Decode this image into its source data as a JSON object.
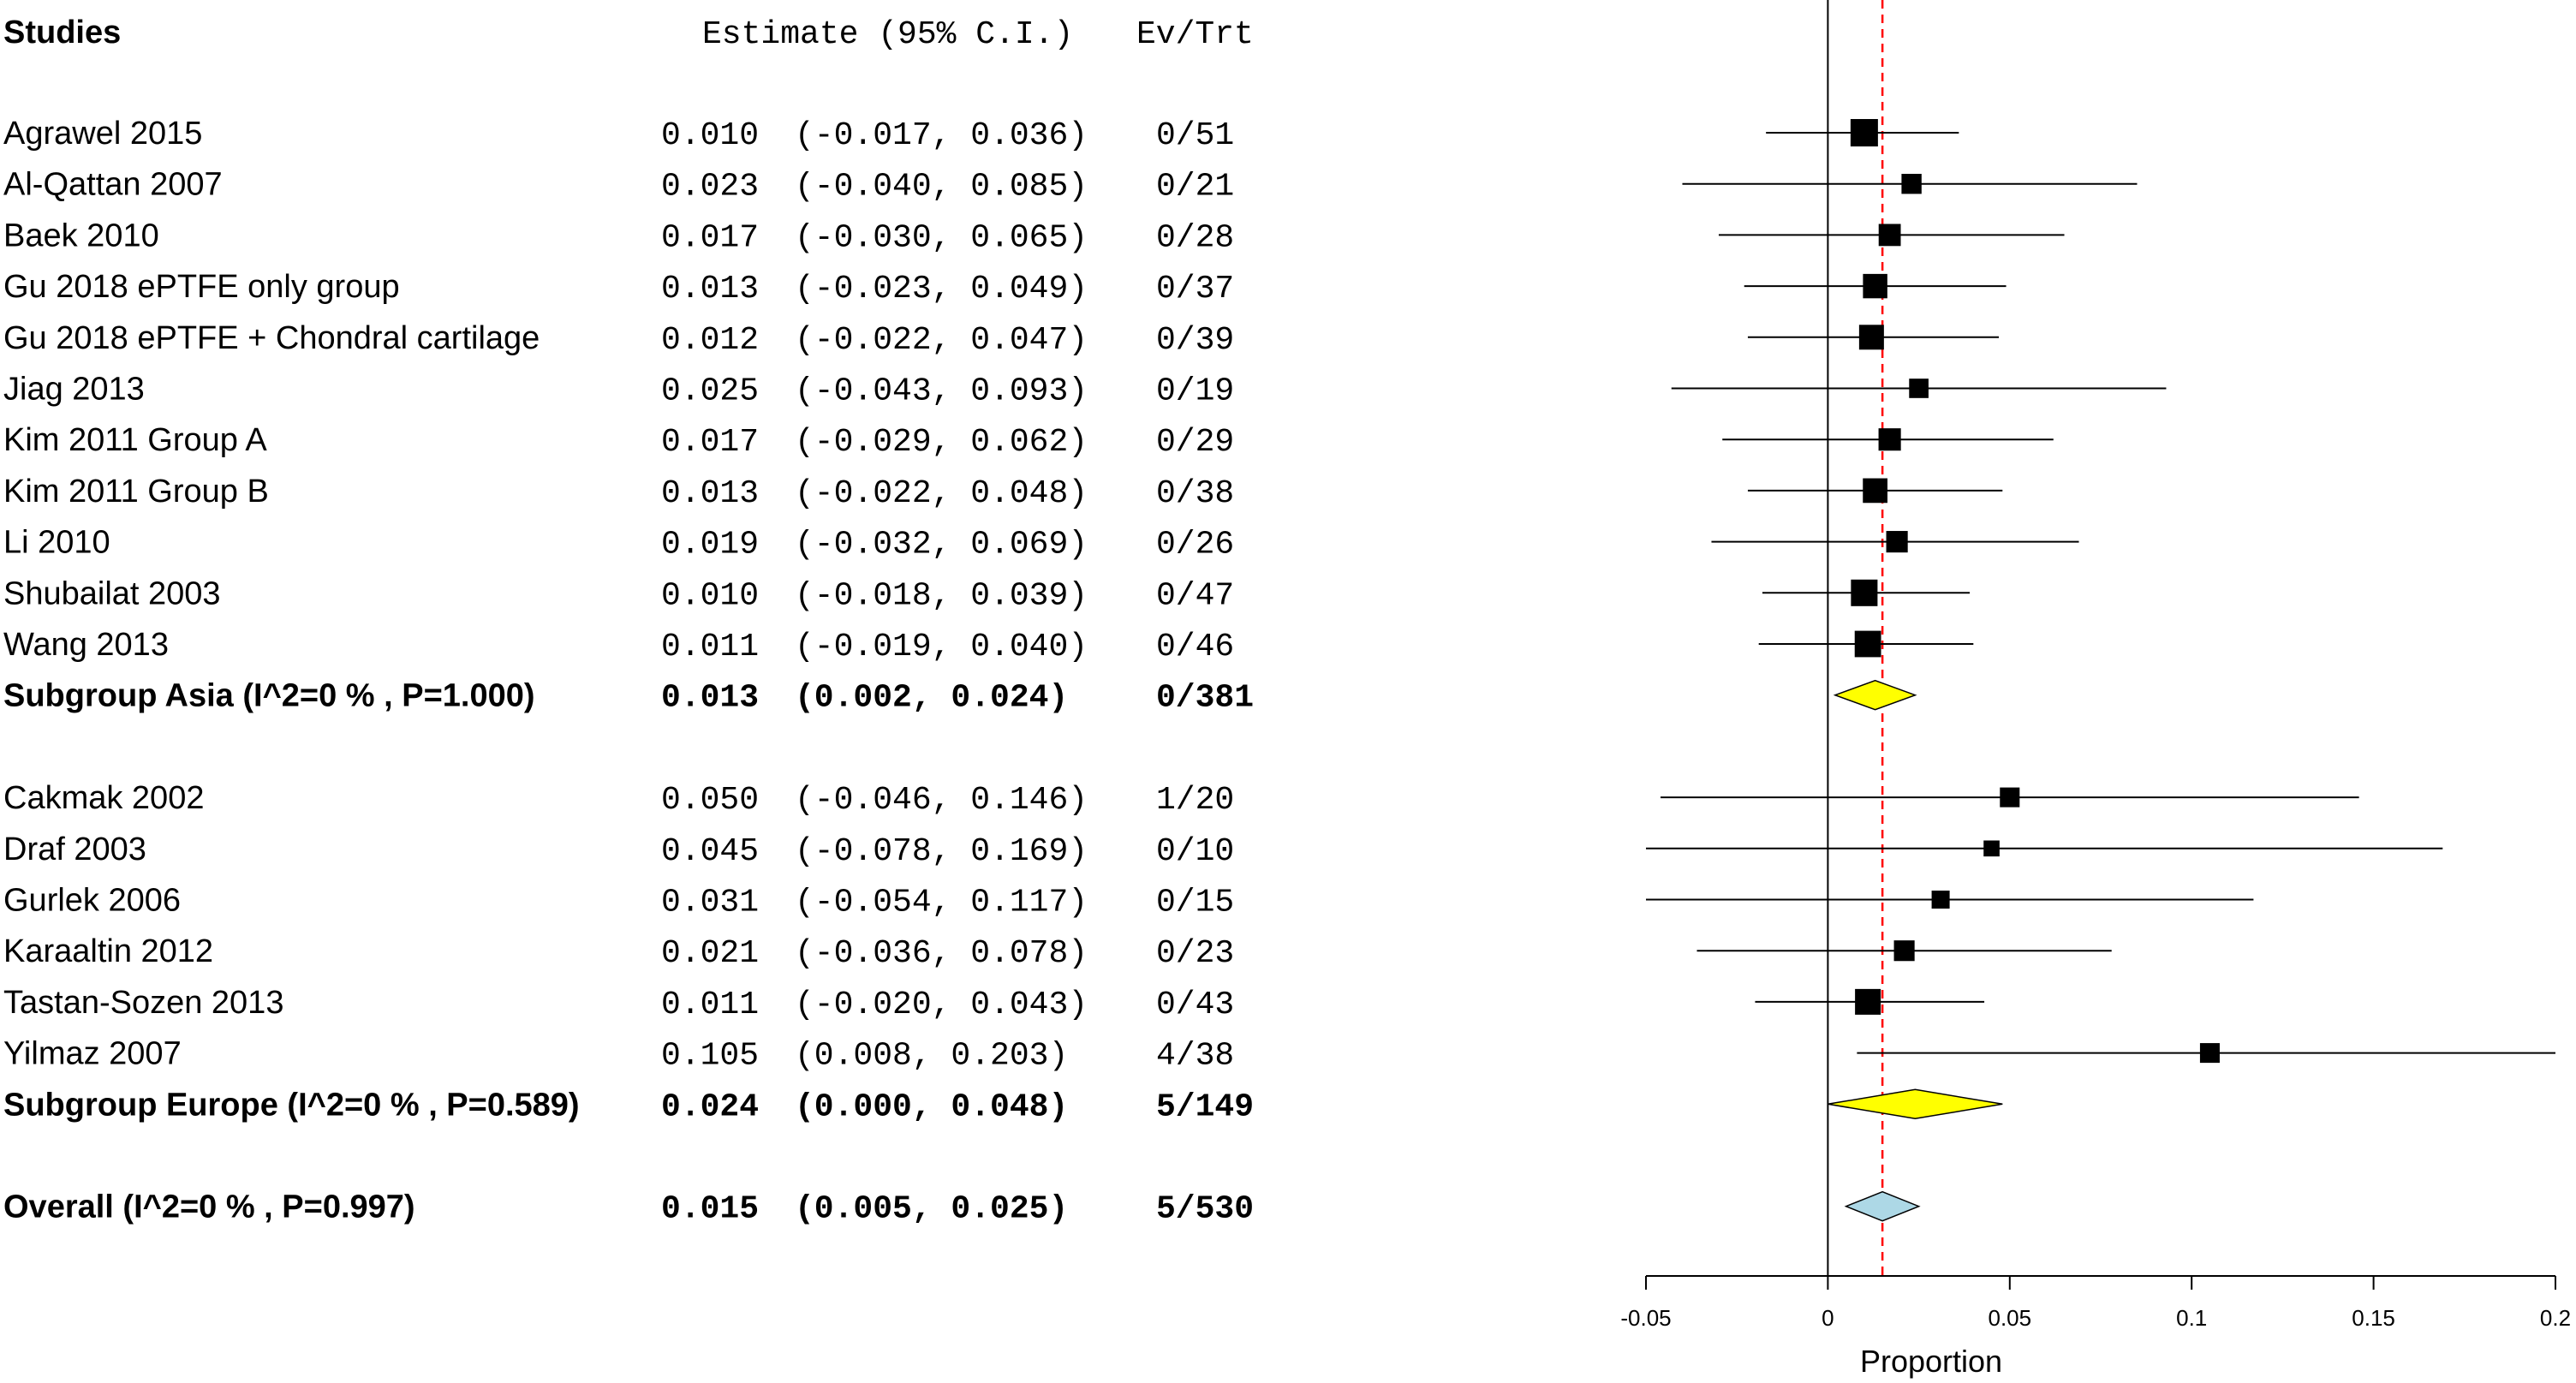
{
  "chart_data": {
    "type": "forest",
    "headers": {
      "studies": "Studies",
      "estimate": "Estimate (95% C.I.)",
      "evtrt": "Ev/Trt"
    },
    "xlabel": "Proportion",
    "xlim": [
      -0.05,
      0.2
    ],
    "ticks": [
      {
        "value": -0.05,
        "label": "-0.05"
      },
      {
        "value": 0,
        "label": "0"
      },
      {
        "value": 0.05,
        "label": "0.05"
      },
      {
        "value": 0.1,
        "label": "0.1"
      },
      {
        "value": 0.15,
        "label": "0.15"
      },
      {
        "value": 0.2,
        "label": "0.2"
      }
    ],
    "reference_line": 0,
    "overall_dashed_line": 0.015,
    "colors": {
      "subgroup_diamond": "#ffff00",
      "overall_diamond": "#add8e6",
      "dashed_line": "#ff0000"
    },
    "rows": [
      {
        "type": "study",
        "label": "Agrawel 2015",
        "est": 0.01,
        "lo": -0.017,
        "hi": 0.036,
        "est_text": "0.010",
        "ci_text": "(-0.017, 0.036)",
        "evtrt": "0/51",
        "weight": 51
      },
      {
        "type": "study",
        "label": "Al-Qattan 2007",
        "est": 0.023,
        "lo": -0.04,
        "hi": 0.085,
        "est_text": "0.023",
        "ci_text": "(-0.040, 0.085)",
        "evtrt": "0/21",
        "weight": 21
      },
      {
        "type": "study",
        "label": "Baek 2010",
        "est": 0.017,
        "lo": -0.03,
        "hi": 0.065,
        "est_text": "0.017",
        "ci_text": "(-0.030, 0.065)",
        "evtrt": "0/28",
        "weight": 28
      },
      {
        "type": "study",
        "label": "Gu 2018 ePTFE only group",
        "est": 0.013,
        "lo": -0.023,
        "hi": 0.049,
        "est_text": "0.013",
        "ci_text": "(-0.023, 0.049)",
        "evtrt": "0/37",
        "weight": 37
      },
      {
        "type": "study",
        "label": "Gu 2018 ePTFE + Chondral cartilage",
        "est": 0.012,
        "lo": -0.022,
        "hi": 0.047,
        "est_text": "0.012",
        "ci_text": "(-0.022, 0.047)",
        "evtrt": "0/39",
        "weight": 39
      },
      {
        "type": "study",
        "label": "Jiag 2013",
        "est": 0.025,
        "lo": -0.043,
        "hi": 0.093,
        "est_text": "0.025",
        "ci_text": "(-0.043, 0.093)",
        "evtrt": "0/19",
        "weight": 19
      },
      {
        "type": "study",
        "label": "Kim 2011 Group A",
        "est": 0.017,
        "lo": -0.029,
        "hi": 0.062,
        "est_text": "0.017",
        "ci_text": "(-0.029, 0.062)",
        "evtrt": "0/29",
        "weight": 29
      },
      {
        "type": "study",
        "label": "Kim 2011 Group B",
        "est": 0.013,
        "lo": -0.022,
        "hi": 0.048,
        "est_text": "0.013",
        "ci_text": "(-0.022, 0.048)",
        "evtrt": "0/38",
        "weight": 38
      },
      {
        "type": "study",
        "label": "Li 2010",
        "est": 0.019,
        "lo": -0.032,
        "hi": 0.069,
        "est_text": "0.019",
        "ci_text": "(-0.032, 0.069)",
        "evtrt": "0/26",
        "weight": 26
      },
      {
        "type": "study",
        "label": "Shubailat 2003",
        "est": 0.01,
        "lo": -0.018,
        "hi": 0.039,
        "est_text": "0.010",
        "ci_text": "(-0.018, 0.039)",
        "evtrt": "0/47",
        "weight": 47
      },
      {
        "type": "study",
        "label": "Wang 2013",
        "est": 0.011,
        "lo": -0.019,
        "hi": 0.04,
        "est_text": "0.011",
        "ci_text": "(-0.019, 0.040)",
        "evtrt": "0/46",
        "weight": 46
      },
      {
        "type": "subgroup",
        "label": "Subgroup Asia (I^2=0 % , P=1.000)",
        "est": 0.013,
        "lo": 0.002,
        "hi": 0.024,
        "est_text": "0.013",
        "ci_text": "(0.002, 0.024)",
        "evtrt": "0/381"
      },
      {
        "type": "blank"
      },
      {
        "type": "study",
        "label": "Cakmak 2002",
        "est": 0.05,
        "lo": -0.046,
        "hi": 0.146,
        "est_text": "0.050",
        "ci_text": "(-0.046, 0.146)",
        "evtrt": "1/20",
        "weight": 20
      },
      {
        "type": "study",
        "label": "Draf 2003",
        "est": 0.045,
        "lo": -0.078,
        "hi": 0.169,
        "est_text": "0.045",
        "ci_text": "(-0.078, 0.169)",
        "evtrt": "0/10",
        "weight": 10
      },
      {
        "type": "study",
        "label": "Gurlek 2006",
        "est": 0.031,
        "lo": -0.054,
        "hi": 0.117,
        "est_text": "0.031",
        "ci_text": "(-0.054, 0.117)",
        "evtrt": "0/15",
        "weight": 15
      },
      {
        "type": "study",
        "label": "Karaaltin 2012",
        "est": 0.021,
        "lo": -0.036,
        "hi": 0.078,
        "est_text": "0.021",
        "ci_text": "(-0.036, 0.078)",
        "evtrt": "0/23",
        "weight": 23
      },
      {
        "type": "study",
        "label": "Tastan-Sozen 2013",
        "est": 0.011,
        "lo": -0.02,
        "hi": 0.043,
        "est_text": "0.011",
        "ci_text": "(-0.020, 0.043)",
        "evtrt": "0/43",
        "weight": 43
      },
      {
        "type": "study",
        "label": "Yilmaz 2007",
        "est": 0.105,
        "lo": 0.008,
        "hi": 0.203,
        "est_text": "0.105",
        "ci_text": "(0.008, 0.203)",
        "evtrt": "4/38",
        "weight": 20
      },
      {
        "type": "subgroup",
        "label": "Subgroup Europe (I^2=0 % , P=0.589)",
        "est": 0.024,
        "lo": 0.0,
        "hi": 0.048,
        "est_text": "0.024",
        "ci_text": "(0.000, 0.048)",
        "evtrt": "5/149"
      },
      {
        "type": "blank"
      },
      {
        "type": "overall",
        "label": "Overall (I^2=0 % , P=0.997)",
        "est": 0.015,
        "lo": 0.005,
        "hi": 0.025,
        "est_text": "0.015",
        "ci_text": "(0.005, 0.025)",
        "evtrt": "5/530"
      }
    ]
  }
}
